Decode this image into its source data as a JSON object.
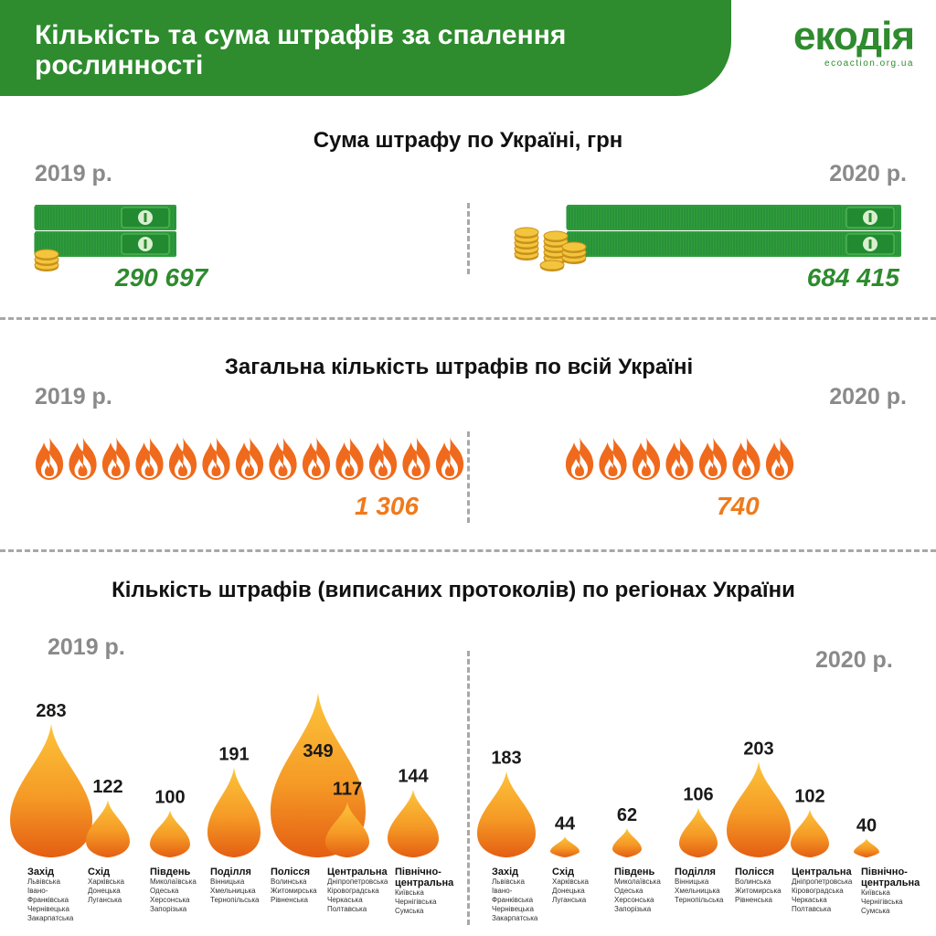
{
  "header": {
    "title": "Кількість та сума штрафів за спалення рослинності",
    "logo_word": "екодія",
    "logo_url": "ecoaction.org.ua"
  },
  "colors": {
    "green": "#2e8b2e",
    "orange": "#f07a1a",
    "gold": "#d8a520",
    "grey": "#8a8a8a"
  },
  "sum_section": {
    "title": "Сума штрафу по Україні, грн",
    "year_2019": "2019 р.",
    "year_2020": "2020 р.",
    "value_2019": "290 697",
    "value_2020": "684 415",
    "icons": [
      "banknote-stack-icon",
      "coin-stack-icon"
    ]
  },
  "count_section": {
    "title": "Загальна кількість штрафів по всій Україні",
    "year_2019": "2019 р.",
    "year_2020": "2020 р.",
    "value_2019": "1 306",
    "value_2020": "740",
    "icons": [
      "flame-icon"
    ]
  },
  "regions_section": {
    "title": "Кількість штрафів (виписаних протоколів) по регіонах України",
    "year_2019": "2019 р.",
    "year_2020": "2020 р."
  },
  "chart_data": [
    {
      "type": "bar",
      "title": "Сума штрафу по Україні, грн",
      "categories": [
        "2019 р.",
        "2020 р."
      ],
      "values": [
        290697,
        684415
      ]
    },
    {
      "type": "bar",
      "title": "Загальна кількість штрафів по всій Україні",
      "categories": [
        "2019 р.",
        "2020 р."
      ],
      "values": [
        1306,
        740
      ]
    },
    {
      "type": "bar",
      "title": "Кількість штрафів (виписаних протоколів) по регіонах України",
      "regions": [
        {
          "name": "Захід",
          "oblasts": [
            "Львівська",
            "Івано-",
            "Франківська",
            "Чернівецька",
            "Закарпатська"
          ]
        },
        {
          "name": "Схід",
          "oblasts": [
            "Харківська",
            "Донецька",
            "Луганська"
          ]
        },
        {
          "name": "Південь",
          "oblasts": [
            "Миколаївська",
            "Одеська",
            "Херсонська",
            "Запорізька"
          ]
        },
        {
          "name": "Поділля",
          "oblasts": [
            "Вінницька",
            "Хмельницька",
            "Тернопільська"
          ]
        },
        {
          "name": "Полісся",
          "oblasts": [
            "Волинська",
            "Житомирська",
            "Рівненська"
          ]
        },
        {
          "name": "Центральна",
          "oblasts": [
            "Дніпропетровська",
            "Кіровоградська",
            "Черкаська",
            "Полтавська"
          ]
        },
        {
          "name": "Північно-центральна",
          "oblasts": [
            "Київська",
            "Чернігівська",
            "Сумська"
          ]
        }
      ],
      "series": [
        {
          "name": "2019 р.",
          "values": [
            283,
            122,
            100,
            191,
            349,
            117,
            144
          ]
        },
        {
          "name": "2020 р.",
          "values": [
            183,
            44,
            62,
            106,
            203,
            102,
            40
          ]
        }
      ]
    }
  ]
}
